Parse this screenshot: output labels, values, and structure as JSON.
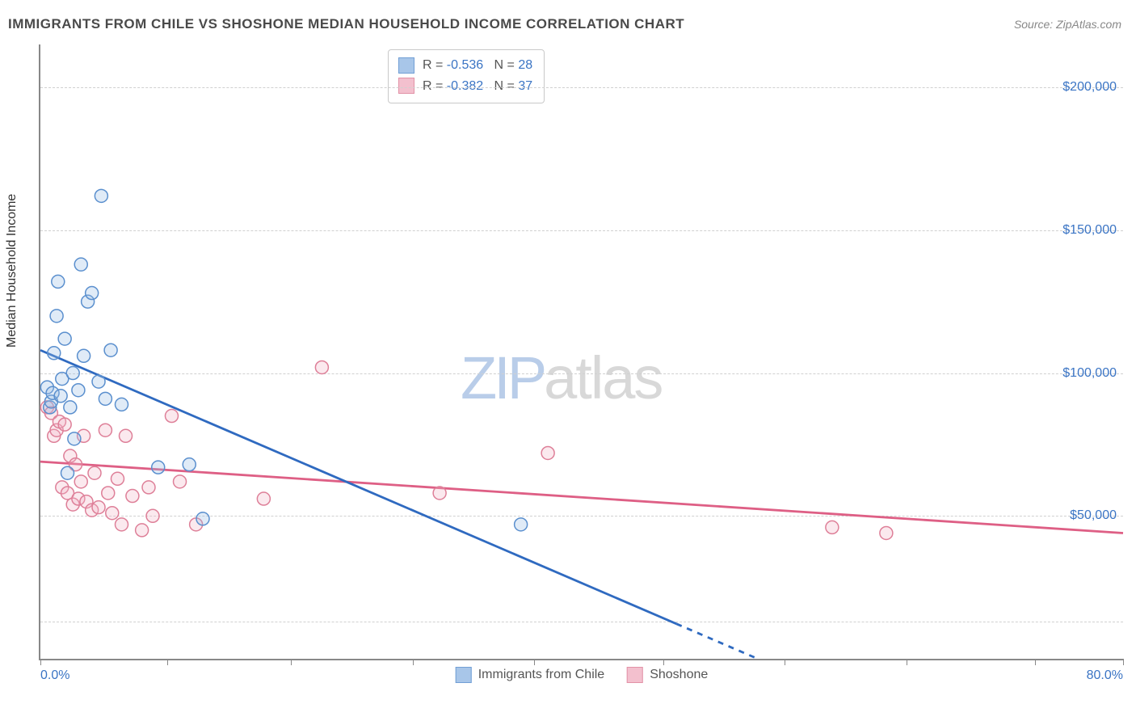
{
  "title": "IMMIGRANTS FROM CHILE VS SHOSHONE MEDIAN HOUSEHOLD INCOME CORRELATION CHART",
  "source_prefix": "Source: ",
  "source_name": "ZipAtlas.com",
  "ylabel": "Median Household Income",
  "watermark": {
    "zip": "ZIP",
    "atlas": "atlas"
  },
  "chart": {
    "type": "scatter",
    "xlim": [
      0,
      80
    ],
    "ylim": [
      0,
      215000
    ],
    "xtick_positions": [
      0,
      9.4,
      18.5,
      27.5,
      36.5,
      46,
      55,
      64,
      73.5,
      80
    ],
    "xtick_labels_shown": {
      "0": "0.0%",
      "80": "80.0%"
    },
    "ytick_values": [
      50000,
      100000,
      150000,
      200000
    ],
    "ytick_labels": [
      "$50,000",
      "$100,000",
      "$150,000",
      "$200,000"
    ],
    "gridline_y_values": [
      13000,
      50000,
      100000,
      150000,
      200000
    ],
    "background_color": "#ffffff",
    "grid_color": "#d0d0d0",
    "axis_color": "#888888",
    "marker_radius": 8,
    "marker_stroke_width": 1.5,
    "marker_fill_opacity": 0.3,
    "trendline_width": 2.8,
    "series": {
      "chile": {
        "label": "Immigrants from Chile",
        "stroke": "#5a8fce",
        "fill": "#99bde6",
        "line_color": "#2f6ac0",
        "R": "-0.536",
        "N": "28",
        "trendline": {
          "x1": 0,
          "y1": 108000,
          "x2": 53,
          "y2": 0,
          "dash_from_x": 47
        },
        "points": [
          [
            0.5,
            95000
          ],
          [
            0.7,
            88000
          ],
          [
            0.8,
            90000
          ],
          [
            0.9,
            93000
          ],
          [
            1.0,
            107000
          ],
          [
            1.2,
            120000
          ],
          [
            1.3,
            132000
          ],
          [
            1.5,
            92000
          ],
          [
            1.6,
            98000
          ],
          [
            1.8,
            112000
          ],
          [
            2.0,
            65000
          ],
          [
            2.2,
            88000
          ],
          [
            2.4,
            100000
          ],
          [
            2.5,
            77000
          ],
          [
            2.8,
            94000
          ],
          [
            3.0,
            138000
          ],
          [
            3.2,
            106000
          ],
          [
            3.5,
            125000
          ],
          [
            3.8,
            128000
          ],
          [
            4.3,
            97000
          ],
          [
            4.5,
            162000
          ],
          [
            4.8,
            91000
          ],
          [
            5.2,
            108000
          ],
          [
            6.0,
            89000
          ],
          [
            8.7,
            67000
          ],
          [
            11.0,
            68000
          ],
          [
            12.0,
            49000
          ],
          [
            35.5,
            47000
          ]
        ]
      },
      "shoshone": {
        "label": "Shoshone",
        "stroke": "#de7f98",
        "fill": "#f2b6c6",
        "line_color": "#de5f85",
        "R": "-0.382",
        "N": "37",
        "trendline": {
          "x1": 0,
          "y1": 69000,
          "x2": 80,
          "y2": 44000
        },
        "points": [
          [
            0.5,
            88000
          ],
          [
            0.8,
            86000
          ],
          [
            1.0,
            78000
          ],
          [
            1.2,
            80000
          ],
          [
            1.4,
            83000
          ],
          [
            1.6,
            60000
          ],
          [
            1.8,
            82000
          ],
          [
            2.0,
            58000
          ],
          [
            2.2,
            71000
          ],
          [
            2.4,
            54000
          ],
          [
            2.6,
            68000
          ],
          [
            2.8,
            56000
          ],
          [
            3.0,
            62000
          ],
          [
            3.2,
            78000
          ],
          [
            3.4,
            55000
          ],
          [
            3.8,
            52000
          ],
          [
            4.0,
            65000
          ],
          [
            4.3,
            53000
          ],
          [
            4.8,
            80000
          ],
          [
            5.0,
            58000
          ],
          [
            5.3,
            51000
          ],
          [
            5.7,
            63000
          ],
          [
            6.0,
            47000
          ],
          [
            6.3,
            78000
          ],
          [
            6.8,
            57000
          ],
          [
            7.5,
            45000
          ],
          [
            8.0,
            60000
          ],
          [
            8.3,
            50000
          ],
          [
            9.7,
            85000
          ],
          [
            10.3,
            62000
          ],
          [
            11.5,
            47000
          ],
          [
            16.5,
            56000
          ],
          [
            20.8,
            102000
          ],
          [
            29.5,
            58000
          ],
          [
            37.5,
            72000
          ],
          [
            58.5,
            46000
          ],
          [
            62.5,
            44000
          ]
        ]
      }
    }
  },
  "legend_box": {
    "rows": [
      {
        "swatch": "chile",
        "r_label": "R = ",
        "n_label": "N = "
      },
      {
        "swatch": "shoshone",
        "r_label": "R = ",
        "n_label": "N = "
      }
    ]
  }
}
